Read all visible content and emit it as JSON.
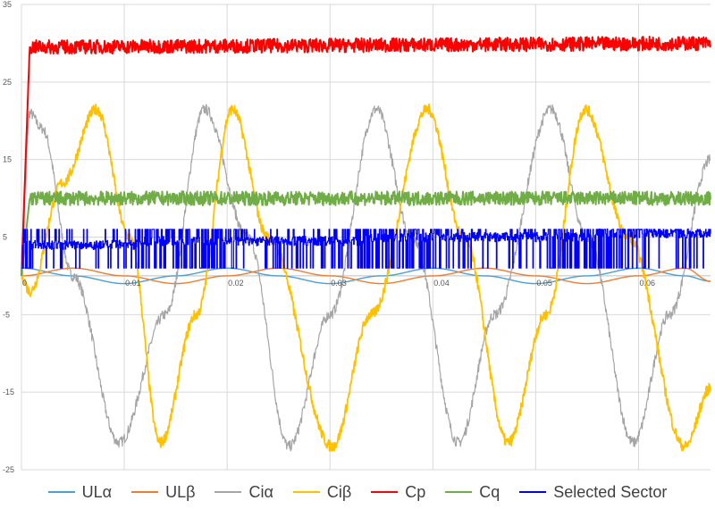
{
  "chart_data": {
    "type": "line",
    "title": "",
    "xlabel": "",
    "ylabel": "",
    "xlim": [
      0,
      0.067
    ],
    "ylim": [
      -25,
      35
    ],
    "x_ticks": [
      {
        "value": 0,
        "label": "0"
      },
      {
        "value": 0.01,
        "label": "0.01"
      },
      {
        "value": 0.02,
        "label": "0.02"
      },
      {
        "value": 0.03,
        "label": "0.03"
      },
      {
        "value": 0.04,
        "label": "0.04"
      },
      {
        "value": 0.05,
        "label": "0.05"
      },
      {
        "value": 0.06,
        "label": "0.06"
      }
    ],
    "y_ticks": [
      {
        "value": 35,
        "label": "35"
      },
      {
        "value": 25,
        "label": "25"
      },
      {
        "value": 15,
        "label": "15"
      },
      {
        "value": 5,
        "label": "5"
      },
      {
        "value": -5,
        "label": "-5"
      },
      {
        "value": -15,
        "label": "-15"
      },
      {
        "value": -25,
        "label": "-25"
      }
    ],
    "grid": true,
    "legend_position": "bottom",
    "series": [
      {
        "name": "ULα",
        "color": "#4a9fd4",
        "points": [
          [
            0,
            1
          ],
          [
            0.005,
            0
          ],
          [
            0.01,
            -1
          ],
          [
            0.015,
            0
          ],
          [
            0.02,
            1
          ],
          [
            0.025,
            0
          ],
          [
            0.03,
            -1
          ],
          [
            0.035,
            0
          ],
          [
            0.04,
            1
          ],
          [
            0.045,
            0
          ],
          [
            0.05,
            -1
          ],
          [
            0.055,
            0
          ],
          [
            0.06,
            1
          ],
          [
            0.0645,
            0
          ],
          [
            0.067,
            -0.7
          ]
        ]
      },
      {
        "name": "ULβ",
        "color": "#ed7d31",
        "points": [
          [
            0,
            0
          ],
          [
            0.005,
            1
          ],
          [
            0.01,
            0
          ],
          [
            0.015,
            -1
          ],
          [
            0.02,
            0
          ],
          [
            0.025,
            1
          ],
          [
            0.03,
            0
          ],
          [
            0.035,
            -1
          ],
          [
            0.04,
            0
          ],
          [
            0.045,
            1
          ],
          [
            0.05,
            0
          ],
          [
            0.055,
            -1
          ],
          [
            0.06,
            0
          ],
          [
            0.0645,
            1
          ],
          [
            0.067,
            -0.7
          ]
        ]
      },
      {
        "name": "Ciα",
        "color": "#a5a5a5",
        "points": [
          [
            0,
            3
          ],
          [
            0.0008,
            21
          ],
          [
            0.002,
            19
          ],
          [
            0.005,
            0
          ],
          [
            0.0095,
            -21.5
          ],
          [
            0.014,
            -5
          ],
          [
            0.0178,
            21.5
          ],
          [
            0.022,
            5
          ],
          [
            0.026,
            -22
          ],
          [
            0.03,
            -5
          ],
          [
            0.0345,
            21.5
          ],
          [
            0.038,
            5
          ],
          [
            0.0425,
            -21.5
          ],
          [
            0.046,
            -5
          ],
          [
            0.0515,
            21.5
          ],
          [
            0.055,
            5
          ],
          [
            0.0595,
            -21.5
          ],
          [
            0.063,
            -5
          ],
          [
            0.067,
            15
          ]
        ]
      },
      {
        "name": "Ciβ",
        "color": "#ffc000",
        "points": [
          [
            0,
            0
          ],
          [
            0.0008,
            -2
          ],
          [
            0.004,
            12
          ],
          [
            0.0073,
            21.5
          ],
          [
            0.0105,
            5
          ],
          [
            0.0135,
            -21.5
          ],
          [
            0.017,
            -5
          ],
          [
            0.0205,
            21.5
          ],
          [
            0.024,
            5
          ],
          [
            0.0302,
            -22
          ],
          [
            0.034,
            -5
          ],
          [
            0.0395,
            21.5
          ],
          [
            0.043,
            5
          ],
          [
            0.0473,
            -21.5
          ],
          [
            0.051,
            -5
          ],
          [
            0.0548,
            21.5
          ],
          [
            0.059,
            5
          ],
          [
            0.0645,
            -22
          ],
          [
            0.067,
            -14.5
          ]
        ]
      },
      {
        "name": "Cp",
        "color": "#ff0000",
        "points": [
          [
            0,
            0
          ],
          [
            0.0008,
            29.5
          ],
          [
            0.067,
            30
          ]
        ]
      },
      {
        "name": "Cq",
        "color": "#70ad47",
        "points": [
          [
            0,
            0
          ],
          [
            0.0008,
            10
          ],
          [
            0.067,
            10
          ]
        ]
      },
      {
        "name": "Selected Sector",
        "color": "#0000ff",
        "points": [
          [
            0,
            4
          ],
          [
            0.067,
            5.5
          ]
        ],
        "min": 1,
        "max": 6
      }
    ]
  }
}
